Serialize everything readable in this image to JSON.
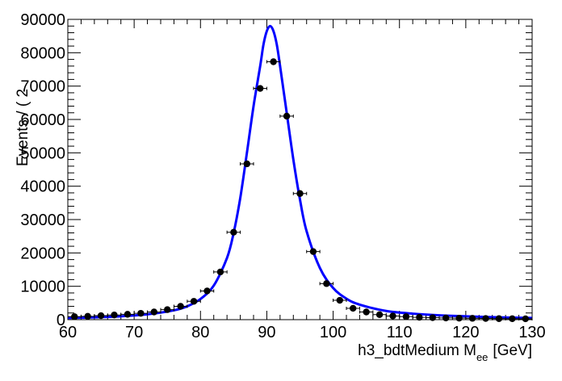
{
  "chart_data": {
    "type": "scatter",
    "title": "",
    "xlabel_main": "h3_bdtMedium  M",
    "xlabel_sub": "ee",
    "xlabel_unit": "[GeV]",
    "ylabel": "Events / ( 2",
    "xlim": [
      60,
      130
    ],
    "ylim": [
      0,
      90000
    ],
    "x_ticks": [
      60,
      70,
      80,
      90,
      100,
      110,
      120,
      130
    ],
    "y_ticks": [
      0,
      10000,
      20000,
      30000,
      40000,
      50000,
      60000,
      70000,
      80000,
      90000
    ],
    "series": [
      {
        "kind": "data_points_with_errors",
        "color": "#000000",
        "bin_half_width": 1,
        "x": [
          61,
          63,
          65,
          67,
          69,
          71,
          73,
          75,
          77,
          79,
          81,
          83,
          85,
          87,
          89,
          91,
          93,
          95,
          97,
          99,
          101,
          103,
          105,
          107,
          109,
          111,
          113,
          115,
          117,
          119,
          121,
          123,
          125,
          127,
          129
        ],
        "y": [
          900,
          1000,
          1200,
          1400,
          1600,
          1900,
          2300,
          3000,
          4000,
          5500,
          8600,
          14300,
          26200,
          46700,
          69300,
          77300,
          61000,
          37800,
          20400,
          10800,
          5800,
          3400,
          2300,
          1500,
          1100,
          900,
          700,
          600,
          500,
          450,
          400,
          350,
          300,
          280,
          250
        ]
      },
      {
        "kind": "fit_curve",
        "color": "#0000ff",
        "x": [
          60,
          64,
          68,
          72,
          76,
          78,
          80,
          82,
          84,
          85,
          86,
          87,
          88,
          89,
          89.5,
          90,
          90.5,
          91,
          91.5,
          92,
          93,
          94,
          95,
          96,
          98,
          100,
          102,
          104,
          108,
          112,
          116,
          120,
          125,
          130
        ],
        "y": [
          500,
          700,
          1000,
          1600,
          2800,
          4000,
          6200,
          10200,
          18500,
          26000,
          36500,
          50000,
          64000,
          76000,
          82500,
          86500,
          88000,
          86500,
          82500,
          76000,
          62000,
          48000,
          36000,
          26500,
          15500,
          9500,
          6300,
          4500,
          2600,
          1800,
          1300,
          1000,
          700,
          500
        ]
      }
    ],
    "grid": false,
    "legend": "none"
  }
}
